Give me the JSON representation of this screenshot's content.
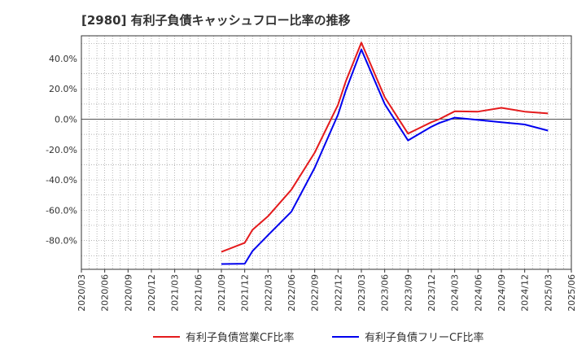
{
  "chart_data": {
    "type": "line",
    "title": "[2980]  有利子負債キャッシュフロー比率の推移",
    "xlabel": "",
    "ylabel": "",
    "x": [
      "2020/03",
      "2020/06",
      "2020/09",
      "2020/12",
      "2021/03",
      "2021/06",
      "2021/09",
      "2021/12",
      "2022/03",
      "2022/06",
      "2022/09",
      "2022/12",
      "2023/03",
      "2023/06",
      "2023/09",
      "2023/12",
      "2024/03",
      "2024/06",
      "2024/09",
      "2024/12",
      "2025/03",
      "2025/06"
    ],
    "y_ticks": [
      "40.0%",
      "20.0%",
      "0.0%",
      "-20.0%",
      "-40.0%",
      "-60.0%",
      "-80.0%"
    ],
    "y_tick_values": [
      40,
      20,
      0,
      -20,
      -40,
      -60,
      -80
    ],
    "ylim": [
      -99,
      55
    ],
    "grid": true,
    "legend_position": "bottom",
    "series": [
      {
        "name": "有利子負債営業CF比率",
        "color": "#e41a1c",
        "points": [
          [
            "2021/09",
            -87.5
          ],
          [
            "2021/12",
            -81.5
          ],
          [
            "2022/01",
            -73
          ],
          [
            "2022/03",
            -64
          ],
          [
            "2022/06",
            -46.5
          ],
          [
            "2022/09",
            -22
          ],
          [
            "2022/12",
            9.5
          ],
          [
            "2023/01",
            25
          ],
          [
            "2023/03",
            50.5
          ],
          [
            "2023/06",
            14.5
          ],
          [
            "2023/09",
            -9.5
          ],
          [
            "2023/12",
            -2
          ],
          [
            "2024/01",
            0
          ],
          [
            "2024/03",
            5.2
          ],
          [
            "2024/06",
            5
          ],
          [
            "2024/09",
            7.5
          ],
          [
            "2024/12",
            5
          ],
          [
            "2025/03",
            3.8
          ]
        ]
      },
      {
        "name": "有利子負債フリーCF比率",
        "color": "#0000ee",
        "points": [
          [
            "2021/09",
            -95.5
          ],
          [
            "2021/12",
            -95.3
          ],
          [
            "2022/01",
            -87
          ],
          [
            "2022/03",
            -76.5
          ],
          [
            "2022/06",
            -61
          ],
          [
            "2022/09",
            -32
          ],
          [
            "2022/12",
            3
          ],
          [
            "2023/01",
            19
          ],
          [
            "2023/03",
            46
          ],
          [
            "2023/06",
            10
          ],
          [
            "2023/09",
            -14
          ],
          [
            "2023/12",
            -5
          ],
          [
            "2024/01",
            -2.5
          ],
          [
            "2024/03",
            1
          ],
          [
            "2024/06",
            -0.5
          ],
          [
            "2024/09",
            -2
          ],
          [
            "2024/12",
            -3.5
          ],
          [
            "2025/03",
            -7.5
          ]
        ]
      }
    ]
  }
}
